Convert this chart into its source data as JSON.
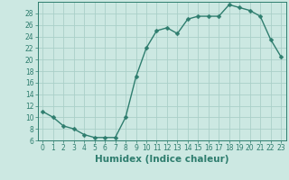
{
  "x": [
    0,
    1,
    2,
    3,
    4,
    5,
    6,
    7,
    8,
    9,
    10,
    11,
    12,
    13,
    14,
    15,
    16,
    17,
    18,
    19,
    20,
    21,
    22,
    23
  ],
  "y": [
    11,
    10,
    8.5,
    8,
    7,
    6.5,
    6.5,
    6.5,
    10,
    17,
    22,
    25,
    25.5,
    24.5,
    27,
    27.5,
    27.5,
    27.5,
    29.5,
    29,
    28.5,
    27.5,
    23.5,
    20.5
  ],
  "line_color": "#2e7d6e",
  "marker_color": "#2e7d6e",
  "bg_color": "#cce8e2",
  "grid_color": "#aacfc8",
  "xlabel": "Humidex (Indice chaleur)",
  "ylim": [
    6,
    30
  ],
  "yticks": [
    6,
    8,
    10,
    12,
    14,
    16,
    18,
    20,
    22,
    24,
    26,
    28
  ],
  "xlim": [
    -0.5,
    23.5
  ],
  "xticks": [
    0,
    1,
    2,
    3,
    4,
    5,
    6,
    7,
    8,
    9,
    10,
    11,
    12,
    13,
    14,
    15,
    16,
    17,
    18,
    19,
    20,
    21,
    22,
    23
  ],
  "tick_fontsize": 5.5,
  "label_fontsize": 7.5,
  "marker_size": 2.5,
  "line_width": 1.0
}
